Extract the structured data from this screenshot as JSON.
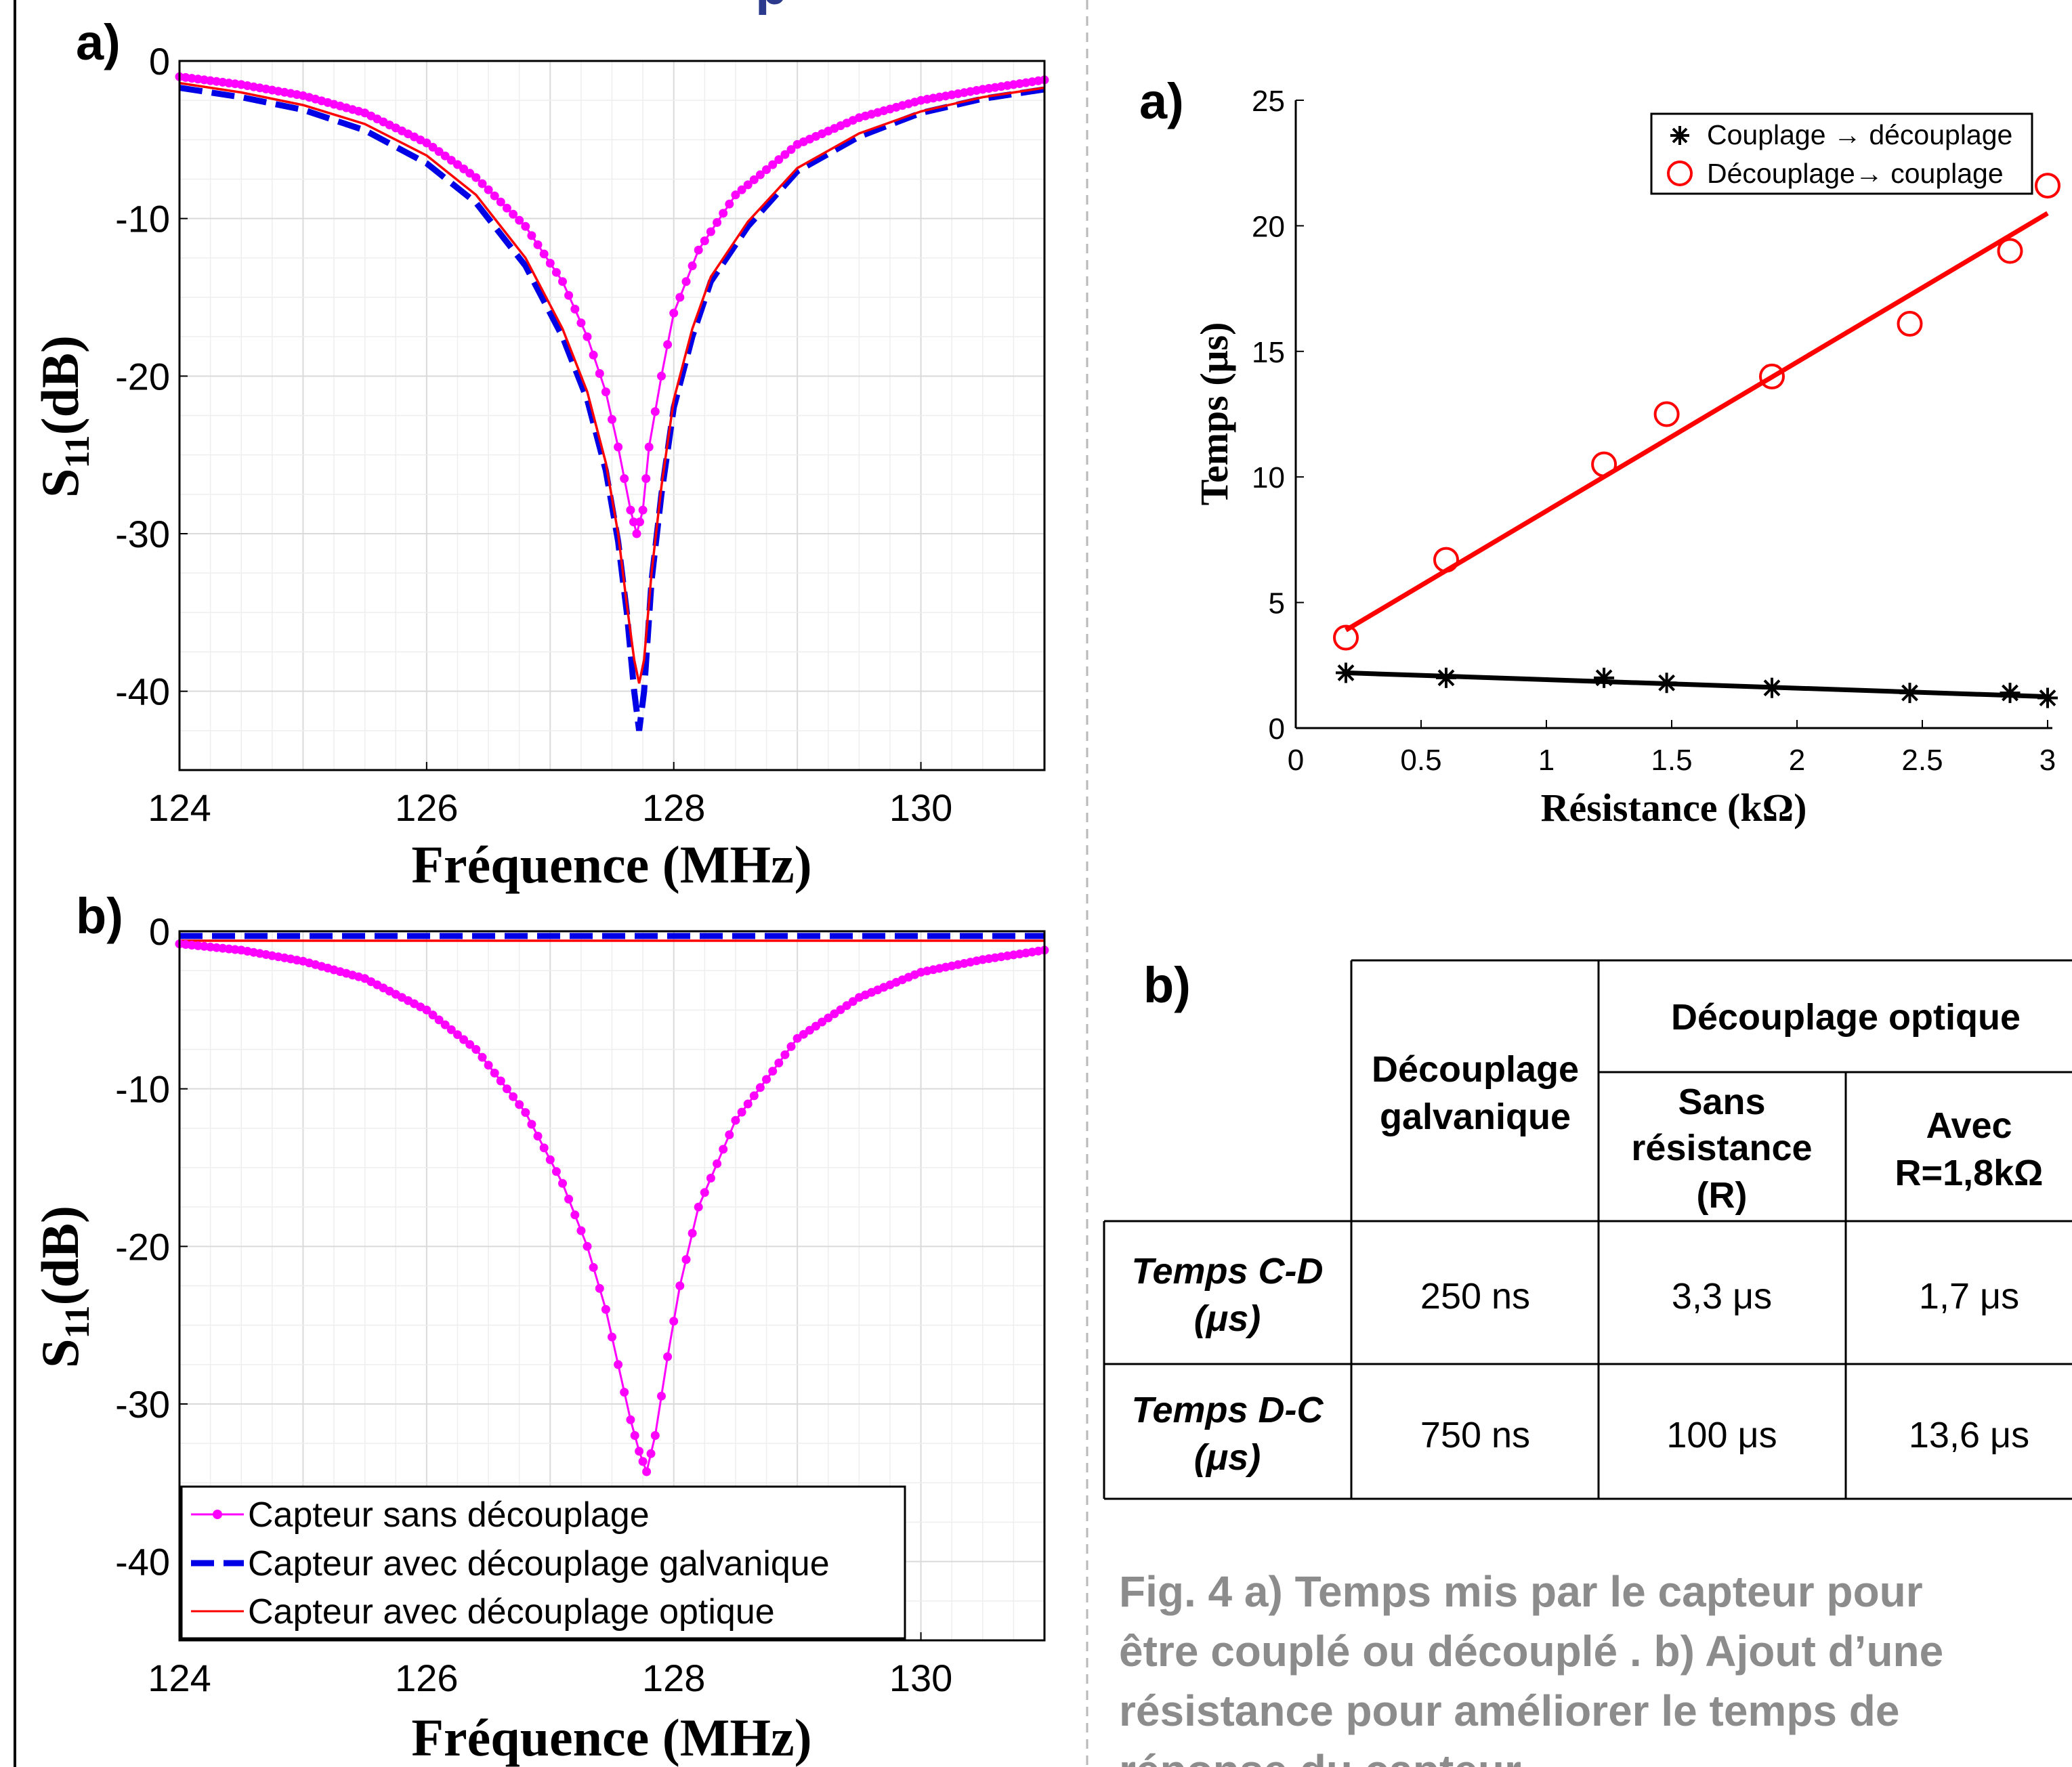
{
  "left": {
    "panel_a_label": "a)",
    "panel_b_label": "b)",
    "top_fragment": "p"
  },
  "right": {
    "panel_a_label": "a)",
    "panel_b_label": "b)"
  },
  "table": {
    "col_galvanic": "Découplage galvanique",
    "col_galvanic_lines": [
      "Découplage",
      "galvanique"
    ],
    "col_optical": "Découplage optique",
    "sub_without": "Sans résistance (R)",
    "sub_without_lines": [
      "Sans",
      "résistance",
      "(R)"
    ],
    "sub_with": "Avec R=1,8kΩ",
    "sub_with_lines": [
      "Avec",
      "R=1,8kΩ"
    ],
    "rows": [
      {
        "label": "Temps  C-D (μs)",
        "label_lines": [
          "Temps  C-D",
          "(μs)"
        ],
        "galvanic": "250 ns",
        "without": "3,3 μs",
        "with": "1,7 μs"
      },
      {
        "label": "Temps  D-C (μs)",
        "label_lines": [
          "Temps  D-C",
          "(μs)"
        ],
        "galvanic": "750 ns",
        "without": "100 μs",
        "with": "13,6 μs"
      }
    ]
  },
  "caption": {
    "text": "Fig. 4  a) Temps mis par le capteur pour être couplé ou découplé . b) Ajout d’une résistance pour améliorer le temps de réponse du capteur.",
    "lines": [
      "Fig. 4  a) Temps mis par le capteur pour",
      "être couplé ou découplé . b) Ajout d’une",
      "résistance pour améliorer le temps de",
      "réponse du capteur."
    ]
  },
  "colors": {
    "magenta": "#FF00FF",
    "blue": "#0000E6",
    "red": "#FF0000",
    "black": "#000000",
    "caption_gray": "#8C8C8C",
    "grid": "#E4E4E4"
  },
  "chart_data": [
    {
      "id": "s11_a",
      "type": "line",
      "xlabel": "Fréquence (MHz)",
      "ylabel": "S11(dB)",
      "xlim": [
        124,
        131
      ],
      "ylim": [
        -45,
        0
      ],
      "xticks": [
        124,
        126,
        128,
        130
      ],
      "yticks": [
        0,
        -10,
        -20,
        -30,
        -40
      ],
      "grid": "on",
      "legend": null,
      "series": [
        {
          "name": "Capteur sans découplage",
          "style": "magenta-dots",
          "x": [
            124,
            124.5,
            125,
            125.5,
            126,
            126.4,
            126.8,
            127.1,
            127.3,
            127.45,
            127.55,
            127.65,
            127.7,
            127.75,
            127.8,
            127.9,
            128.0,
            128.2,
            128.5,
            129,
            129.5,
            130,
            130.5,
            131
          ],
          "y": [
            -1.0,
            -1.5,
            -2.2,
            -3.3,
            -5.2,
            -7.4,
            -10.5,
            -14.0,
            -17.5,
            -21.0,
            -24.5,
            -28.5,
            -30.0,
            -28.5,
            -24.5,
            -20.0,
            -16.0,
            -12.0,
            -8.5,
            -5.3,
            -3.6,
            -2.5,
            -1.8,
            -1.2
          ]
        },
        {
          "name": "Capteur avec découplage galvanique",
          "style": "blue-dashed",
          "x": [
            124,
            124.5,
            125,
            125.5,
            126,
            126.4,
            126.8,
            127.1,
            127.3,
            127.45,
            127.55,
            127.62,
            127.68,
            127.72,
            127.76,
            127.82,
            127.9,
            128.0,
            128.15,
            128.3,
            128.6,
            129,
            129.5,
            130,
            130.5,
            131
          ],
          "y": [
            -1.7,
            -2.3,
            -3.1,
            -4.4,
            -6.5,
            -9.0,
            -13.0,
            -17.5,
            -21.5,
            -26.0,
            -30.5,
            -35.0,
            -40.0,
            -42.5,
            -40.0,
            -33.0,
            -27.5,
            -22.0,
            -17.5,
            -14.0,
            -10.5,
            -7.0,
            -4.8,
            -3.3,
            -2.4,
            -1.8
          ]
        },
        {
          "name": "Capteur avec découplage optique",
          "style": "red-solid",
          "x": [
            124,
            124.5,
            125,
            125.5,
            126,
            126.4,
            126.8,
            127.1,
            127.3,
            127.45,
            127.55,
            127.62,
            127.68,
            127.72,
            127.76,
            127.82,
            127.9,
            128.0,
            128.15,
            128.3,
            128.6,
            129,
            129.5,
            130,
            130.5,
            131
          ],
          "y": [
            -1.4,
            -2.0,
            -2.8,
            -4.0,
            -6.0,
            -8.5,
            -12.5,
            -17.0,
            -21.0,
            -25.5,
            -30.0,
            -34.5,
            -38.0,
            -39.5,
            -38.0,
            -32.5,
            -27.0,
            -21.5,
            -17.0,
            -13.7,
            -10.2,
            -6.8,
            -4.6,
            -3.2,
            -2.3,
            -1.7
          ]
        }
      ]
    },
    {
      "id": "s11_b",
      "type": "line",
      "xlabel": "Fréquence (MHz)",
      "ylabel": "S11(dB)",
      "xlim": [
        124,
        131
      ],
      "ylim": [
        -45,
        0
      ],
      "xticks": [
        124,
        126,
        128,
        130
      ],
      "yticks": [
        0,
        -10,
        -20,
        -30,
        -40
      ],
      "grid": "on",
      "legend": "bottom-left",
      "series": [
        {
          "name": "Capteur sans découplage",
          "style": "magenta-dots",
          "x": [
            124,
            124.5,
            125,
            125.5,
            126,
            126.4,
            126.8,
            127.1,
            127.3,
            127.45,
            127.55,
            127.65,
            127.72,
            127.78,
            127.85,
            127.95,
            128.05,
            128.2,
            128.5,
            129,
            129.5,
            130,
            130.5,
            131
          ],
          "y": [
            -0.8,
            -1.2,
            -1.9,
            -3.0,
            -5.0,
            -7.5,
            -11.5,
            -16.0,
            -20.0,
            -24.0,
            -27.5,
            -31.0,
            -33.0,
            -34.3,
            -32.0,
            -27.0,
            -22.5,
            -17.5,
            -12.0,
            -6.8,
            -4.2,
            -2.6,
            -1.8,
            -1.2
          ]
        },
        {
          "name": "Capteur avec découplage galvanique",
          "style": "blue-dashed",
          "x": [
            124,
            131
          ],
          "y": [
            -0.3,
            -0.3
          ]
        },
        {
          "name": "Capteur avec découplage optique",
          "style": "red-solid",
          "x": [
            124,
            131
          ],
          "y": [
            -0.6,
            -0.6
          ]
        }
      ]
    },
    {
      "id": "temps",
      "type": "scatter",
      "xlabel": "Résistance (kΩ)",
      "ylabel": "Temps  (μs)",
      "xlim": [
        0,
        3
      ],
      "ylim": [
        0,
        25
      ],
      "xticks": [
        0,
        0.5,
        1,
        1.5,
        2,
        2.5,
        3
      ],
      "xtick_labels": [
        "0",
        "0.5",
        "1",
        "1.5",
        "2",
        "2.5",
        "3"
      ],
      "yticks": [
        0,
        5,
        10,
        15,
        20,
        25
      ],
      "grid": "off",
      "legend": "top-right",
      "series": [
        {
          "name": "Couplage → découplage",
          "marker": "asterisk",
          "color": "#000000",
          "x": [
            0.2,
            0.6,
            1.23,
            1.48,
            1.9,
            2.45,
            2.85,
            3.0
          ],
          "y": [
            2.2,
            2.0,
            2.0,
            1.8,
            1.6,
            1.4,
            1.4,
            1.2
          ],
          "fit": [
            [
              0.2,
              2.2
            ],
            [
              3.0,
              1.25
            ]
          ]
        },
        {
          "name": "Découplage→ couplage",
          "marker": "circle",
          "color": "#FF0000",
          "x": [
            0.2,
            0.6,
            1.23,
            1.48,
            1.9,
            2.45,
            2.85,
            3.0
          ],
          "y": [
            3.6,
            6.7,
            10.5,
            12.5,
            14.0,
            16.1,
            19.0,
            21.6
          ],
          "fit": [
            [
              0.2,
              3.9
            ],
            [
              3.0,
              20.5
            ]
          ]
        }
      ]
    }
  ]
}
